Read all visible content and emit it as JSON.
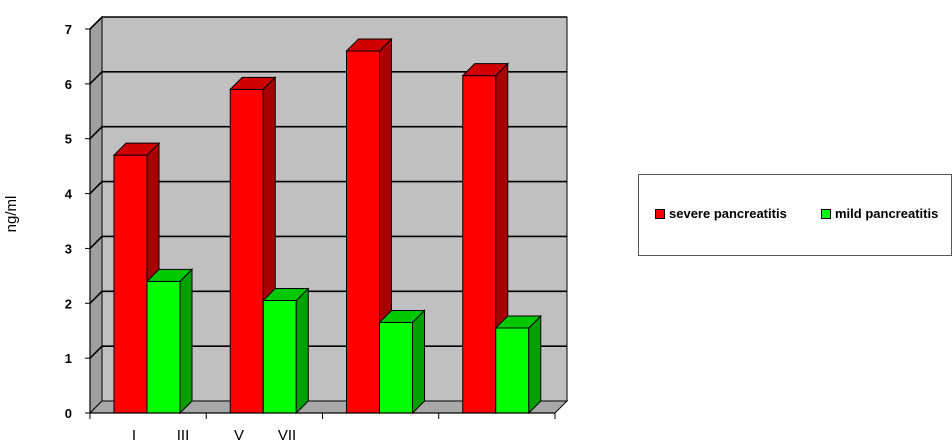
{
  "chart_data": {
    "type": "bar",
    "categories": [
      "I",
      "III",
      "V",
      "VII"
    ],
    "series": [
      {
        "name": "severe pancreatitis",
        "values": [
          4.7,
          5.9,
          6.6,
          6.15
        ]
      },
      {
        "name": "mild pancreatitis",
        "values": [
          2.4,
          2.05,
          1.65,
          1.55
        ]
      }
    ],
    "ylabel": "ng/ml",
    "xlabel": "",
    "ylim": [
      0,
      7
    ],
    "yticks": [
      0,
      1,
      2,
      3,
      4,
      5,
      6,
      7
    ],
    "x_tick_labels": [
      "I",
      "III",
      "V",
      "VII"
    ],
    "grid": true,
    "legend_position": "right",
    "colors": {
      "severe": "#ff0000",
      "severe_side": "#a80000",
      "severe_top": "#d00000",
      "mild": "#00ff00",
      "mild_side": "#00a000",
      "mild_top": "#00c800",
      "wall": "#c0c0c0",
      "floor": "#a8a8a8"
    }
  }
}
